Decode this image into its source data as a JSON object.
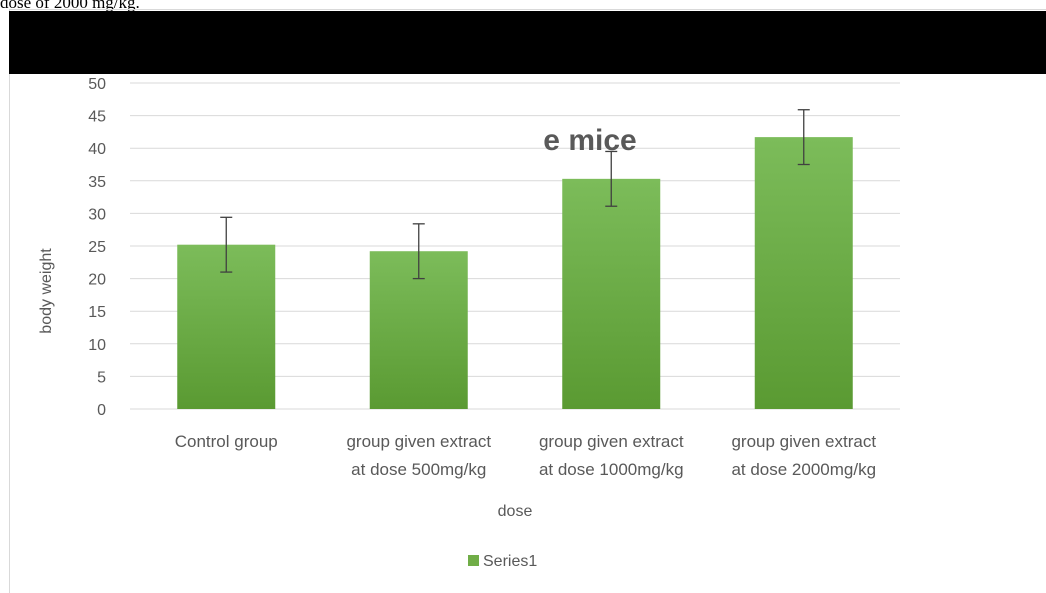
{
  "caption_fragment": "dose of 2000 mg/kg.",
  "chart_data": {
    "type": "bar",
    "title": "e mice",
    "xlabel": "dose",
    "ylabel": "body weight",
    "ylim": [
      0,
      50
    ],
    "yticks": [
      0,
      5,
      10,
      15,
      20,
      25,
      30,
      35,
      40,
      45,
      50
    ],
    "grid": true,
    "legend_position": "bottom",
    "categories": [
      [
        "Control group"
      ],
      [
        "group given extract",
        "at dose 500mg/kg"
      ],
      [
        "group given extract",
        "at dose 1000mg/kg"
      ],
      [
        "group given extract",
        "at dose 2000mg/kg"
      ]
    ],
    "series": [
      {
        "name": "Series1",
        "values": [
          25.2,
          24.2,
          35.3,
          41.7
        ],
        "error": [
          4.2,
          4.2,
          4.2,
          4.2
        ]
      }
    ],
    "colors": {
      "bar_top": "#7cbc5a",
      "bar_bottom": "#5a9a32",
      "legend": "#70ad47",
      "grid": "#d9d9d9",
      "error_bar": "#404040"
    }
  }
}
